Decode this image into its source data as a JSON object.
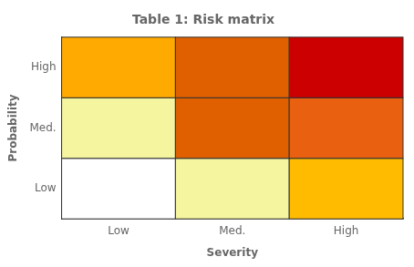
{
  "chart_data": {
    "type": "heatmap",
    "title": "Table 1: Risk matrix",
    "xlabel": "Severity",
    "ylabel": "Probability",
    "x": [
      "Low",
      "Med.",
      "High"
    ],
    "y": [
      "Low",
      "Med.",
      "High"
    ],
    "colors": [
      [
        "#ffffff",
        "#f5f5a0",
        "#ffbb00"
      ],
      [
        "#f5f5a0",
        "#e06000",
        "#e86010"
      ],
      [
        "#ffaa00",
        "#e06000",
        "#cc0000"
      ]
    ],
    "grid": false
  }
}
